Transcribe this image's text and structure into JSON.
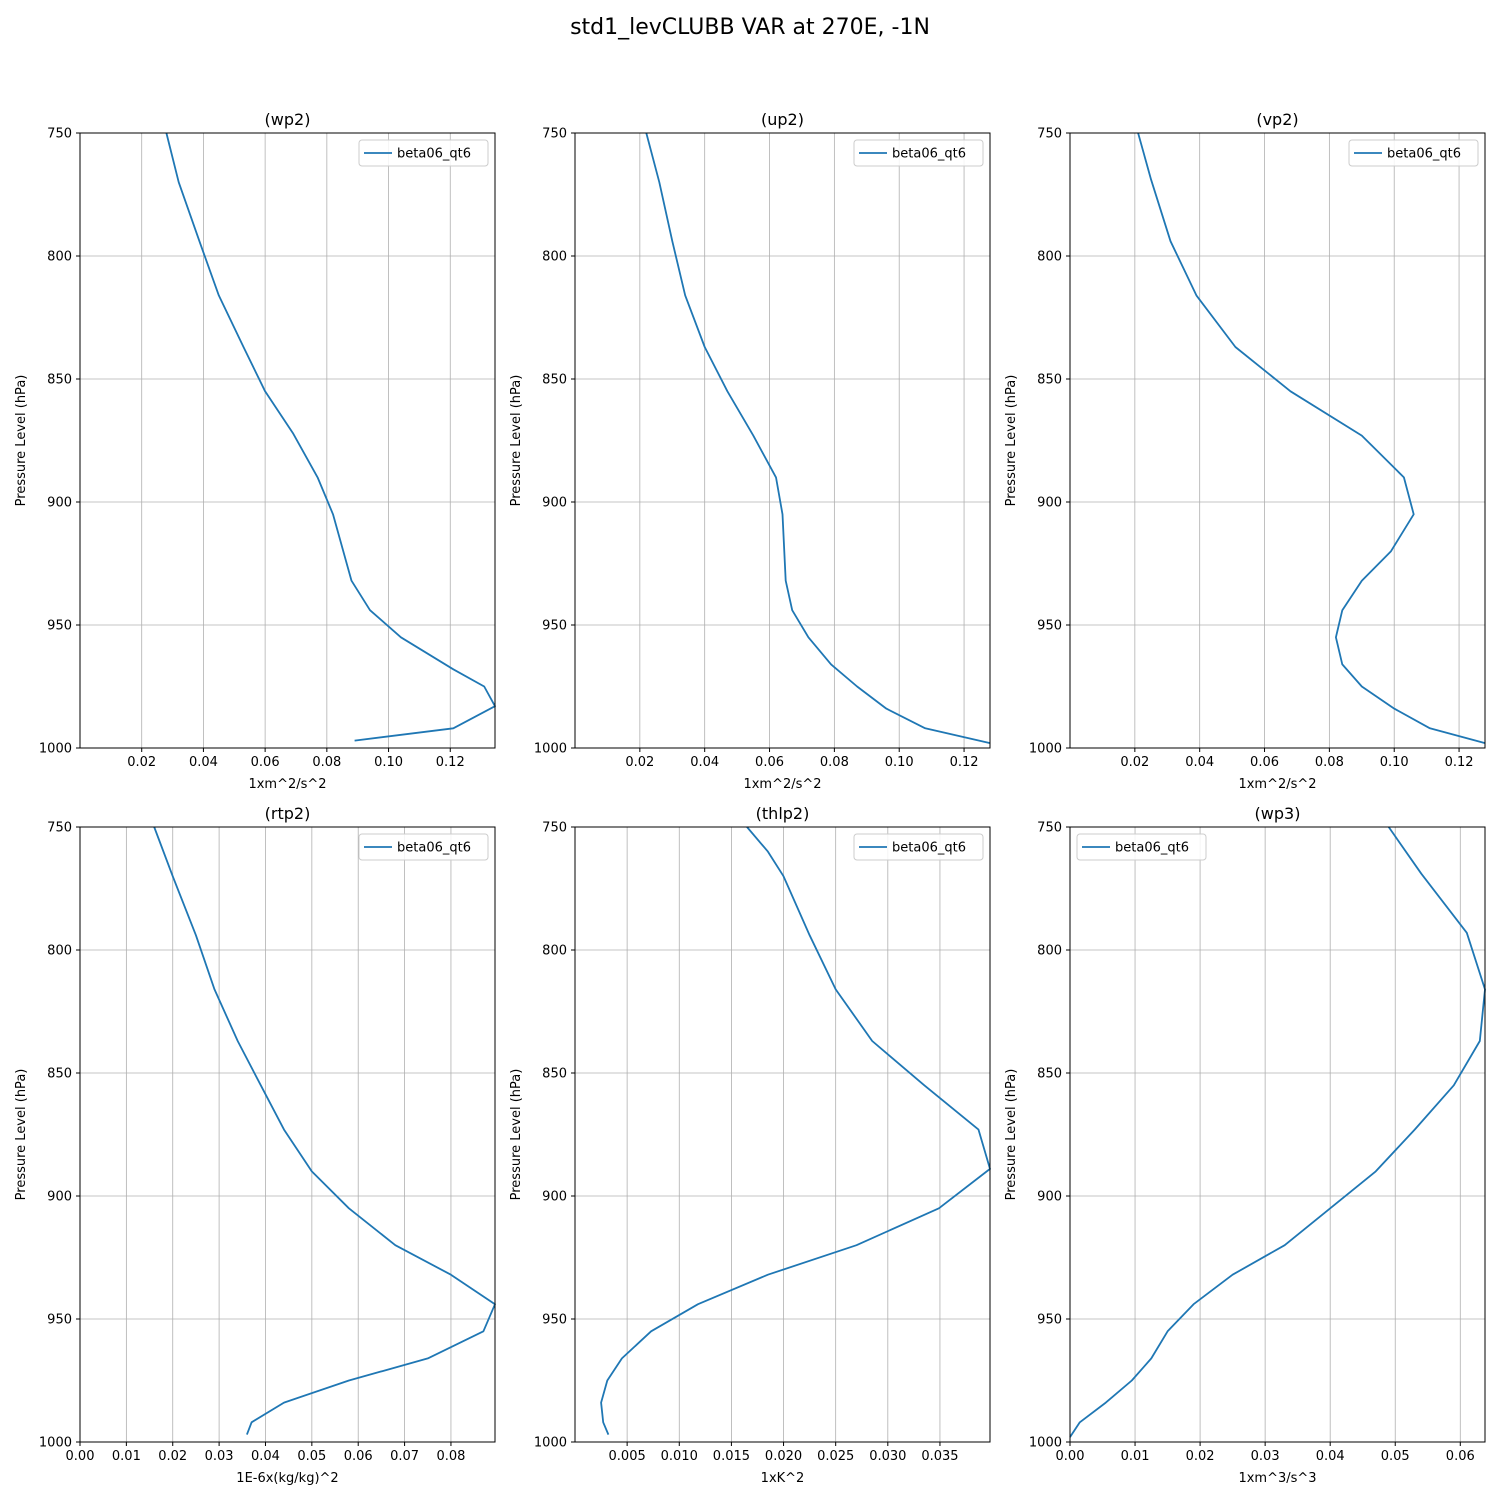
{
  "figure_title": "std1_levCLUBB VAR at 270E, -1N",
  "colors": {
    "series": "#1f77b4",
    "grid": "#b0b0b0",
    "axis": "#000000"
  },
  "chart_data": [
    {
      "type": "line",
      "title": "(wp2)",
      "xlabel": "1xm^2/s^2",
      "ylabel": "Pressure Level (hPa)",
      "xlim": [
        0,
        0.1345
      ],
      "ylim": [
        1000,
        750
      ],
      "xticks": [
        0.02,
        0.04,
        0.06,
        0.08,
        0.1,
        0.12
      ],
      "xtick_labels": [
        "0.02",
        "0.04",
        "0.06",
        "0.08",
        "0.10",
        "0.12"
      ],
      "yticks": [
        750,
        800,
        850,
        900,
        950,
        1000
      ],
      "ytick_labels": [
        "750",
        "800",
        "850",
        "900",
        "950",
        "1000"
      ],
      "grid": true,
      "legend": "upper right",
      "series": [
        {
          "name": "beta06_qt6",
          "x": [
            0.028,
            0.032,
            0.039,
            0.045,
            0.053,
            0.06,
            0.069,
            0.077,
            0.082,
            0.088,
            0.094,
            0.104,
            0.121,
            0.131,
            0.1345,
            0.121,
            0.089
          ],
          "y": [
            750,
            770,
            795,
            816,
            837,
            855,
            872,
            890,
            905,
            932,
            944,
            955,
            968,
            975,
            983,
            992,
            997
          ]
        }
      ]
    },
    {
      "type": "line",
      "title": "(up2)",
      "xlabel": "1xm^2/s^2",
      "ylabel": "Pressure Level (hPa)",
      "xlim": [
        0,
        0.128
      ],
      "ylim": [
        1000,
        750
      ],
      "xticks": [
        0.02,
        0.04,
        0.06,
        0.08,
        0.1,
        0.12
      ],
      "xtick_labels": [
        "0.02",
        "0.04",
        "0.06",
        "0.08",
        "0.10",
        "0.12"
      ],
      "yticks": [
        750,
        800,
        850,
        900,
        950,
        1000
      ],
      "ytick_labels": [
        "750",
        "800",
        "850",
        "900",
        "950",
        "1000"
      ],
      "grid": true,
      "legend": "upper right",
      "series": [
        {
          "name": "beta06_qt6",
          "x": [
            0.022,
            0.026,
            0.03,
            0.034,
            0.04,
            0.047,
            0.055,
            0.062,
            0.064,
            0.065,
            0.067,
            0.072,
            0.079,
            0.087,
            0.096,
            0.108,
            0.128
          ],
          "y": [
            750,
            770,
            794,
            816,
            837,
            855,
            873,
            890,
            905,
            932,
            944,
            955,
            966,
            975,
            984,
            992,
            998
          ]
        }
      ]
    },
    {
      "type": "line",
      "title": "(vp2)",
      "xlabel": "1xm^2/s^2",
      "ylabel": "Pressure Level (hPa)",
      "xlim": [
        0,
        0.128
      ],
      "ylim": [
        1000,
        750
      ],
      "xticks": [
        0.02,
        0.04,
        0.06,
        0.08,
        0.1,
        0.12
      ],
      "xtick_labels": [
        "0.02",
        "0.04",
        "0.06",
        "0.08",
        "0.10",
        "0.12"
      ],
      "yticks": [
        750,
        800,
        850,
        900,
        950,
        1000
      ],
      "ytick_labels": [
        "750",
        "800",
        "850",
        "900",
        "950",
        "1000"
      ],
      "grid": true,
      "legend": "upper right",
      "series": [
        {
          "name": "beta06_qt6",
          "x": [
            0.021,
            0.025,
            0.031,
            0.039,
            0.051,
            0.068,
            0.09,
            0.103,
            0.106,
            0.099,
            0.09,
            0.084,
            0.082,
            0.084,
            0.09,
            0.1,
            0.111,
            0.128
          ],
          "y": [
            750,
            769,
            794,
            816,
            837,
            855,
            873,
            890,
            905,
            920,
            932,
            944,
            955,
            966,
            975,
            984,
            992,
            998
          ]
        }
      ]
    },
    {
      "type": "line",
      "title": "(rtp2)",
      "xlabel": "1E-6x(kg/kg)^2",
      "ylabel": "Pressure Level (hPa)",
      "xlim": [
        0,
        0.0895
      ],
      "ylim": [
        1000,
        750
      ],
      "xticks": [
        0.0,
        0.01,
        0.02,
        0.03,
        0.04,
        0.05,
        0.06,
        0.07,
        0.08
      ],
      "xtick_labels": [
        "0.00",
        "0.01",
        "0.02",
        "0.03",
        "0.04",
        "0.05",
        "0.06",
        "0.07",
        "0.08"
      ],
      "yticks": [
        750,
        800,
        850,
        900,
        950,
        1000
      ],
      "ytick_labels": [
        "750",
        "800",
        "850",
        "900",
        "950",
        "1000"
      ],
      "grid": true,
      "legend": "upper right",
      "series": [
        {
          "name": "beta06_qt6",
          "x": [
            0.016,
            0.02,
            0.025,
            0.029,
            0.034,
            0.039,
            0.044,
            0.05,
            0.058,
            0.068,
            0.08,
            0.0895,
            0.087,
            0.075,
            0.058,
            0.044,
            0.037,
            0.036
          ],
          "y": [
            750,
            770,
            794,
            816,
            837,
            855,
            873,
            890,
            905,
            920,
            932,
            944,
            955,
            966,
            975,
            984,
            992,
            997
          ]
        }
      ]
    },
    {
      "type": "line",
      "title": "(thlp2)",
      "xlabel": "1xK^2",
      "ylabel": "Pressure Level (hPa)",
      "xlim": [
        0,
        0.0398
      ],
      "ylim": [
        1000,
        750
      ],
      "xticks": [
        0.005,
        0.01,
        0.015,
        0.02,
        0.025,
        0.03,
        0.035
      ],
      "xtick_labels": [
        "0.005",
        "0.010",
        "0.015",
        "0.020",
        "0.025",
        "0.030",
        "0.035"
      ],
      "yticks": [
        750,
        800,
        850,
        900,
        950,
        1000
      ],
      "ytick_labels": [
        "750",
        "800",
        "850",
        "900",
        "950",
        "1000"
      ],
      "grid": true,
      "legend": "upper right",
      "series": [
        {
          "name": "beta06_qt6",
          "x": [
            0.0165,
            0.0185,
            0.02,
            0.0225,
            0.025,
            0.0285,
            0.0335,
            0.0387,
            0.0398,
            0.0349,
            0.027,
            0.0185,
            0.0118,
            0.0073,
            0.0045,
            0.0031,
            0.0025,
            0.0027,
            0.0032
          ],
          "y": [
            750,
            760,
            770,
            794,
            816,
            837,
            855,
            873,
            889,
            905,
            920,
            932,
            944,
            955,
            966,
            975,
            984,
            992,
            997
          ]
        }
      ]
    },
    {
      "type": "line",
      "title": "(wp3)",
      "xlabel": "1xm^3/s^3",
      "ylabel": "Pressure Level (hPa)",
      "xlim": [
        0,
        0.0638
      ],
      "ylim": [
        1000,
        750
      ],
      "xticks": [
        0.0,
        0.01,
        0.02,
        0.03,
        0.04,
        0.05,
        0.06
      ],
      "xtick_labels": [
        "0.00",
        "0.01",
        "0.02",
        "0.03",
        "0.04",
        "0.05",
        "0.06"
      ],
      "yticks": [
        750,
        800,
        850,
        900,
        950,
        1000
      ],
      "ytick_labels": [
        "750",
        "800",
        "850",
        "900",
        "950",
        "1000"
      ],
      "grid": true,
      "legend": "upper left",
      "series": [
        {
          "name": "beta06_qt6",
          "x": [
            0.049,
            0.054,
            0.061,
            0.0638,
            0.063,
            0.059,
            0.053,
            0.047,
            0.04,
            0.033,
            0.025,
            0.019,
            0.015,
            0.0125,
            0.0095,
            0.0055,
            0.0015,
            0.0
          ],
          "y": [
            750,
            769,
            793,
            816,
            837,
            855,
            873,
            890,
            905,
            920,
            932,
            944,
            955,
            966,
            975,
            984,
            992,
            998
          ]
        }
      ]
    }
  ]
}
